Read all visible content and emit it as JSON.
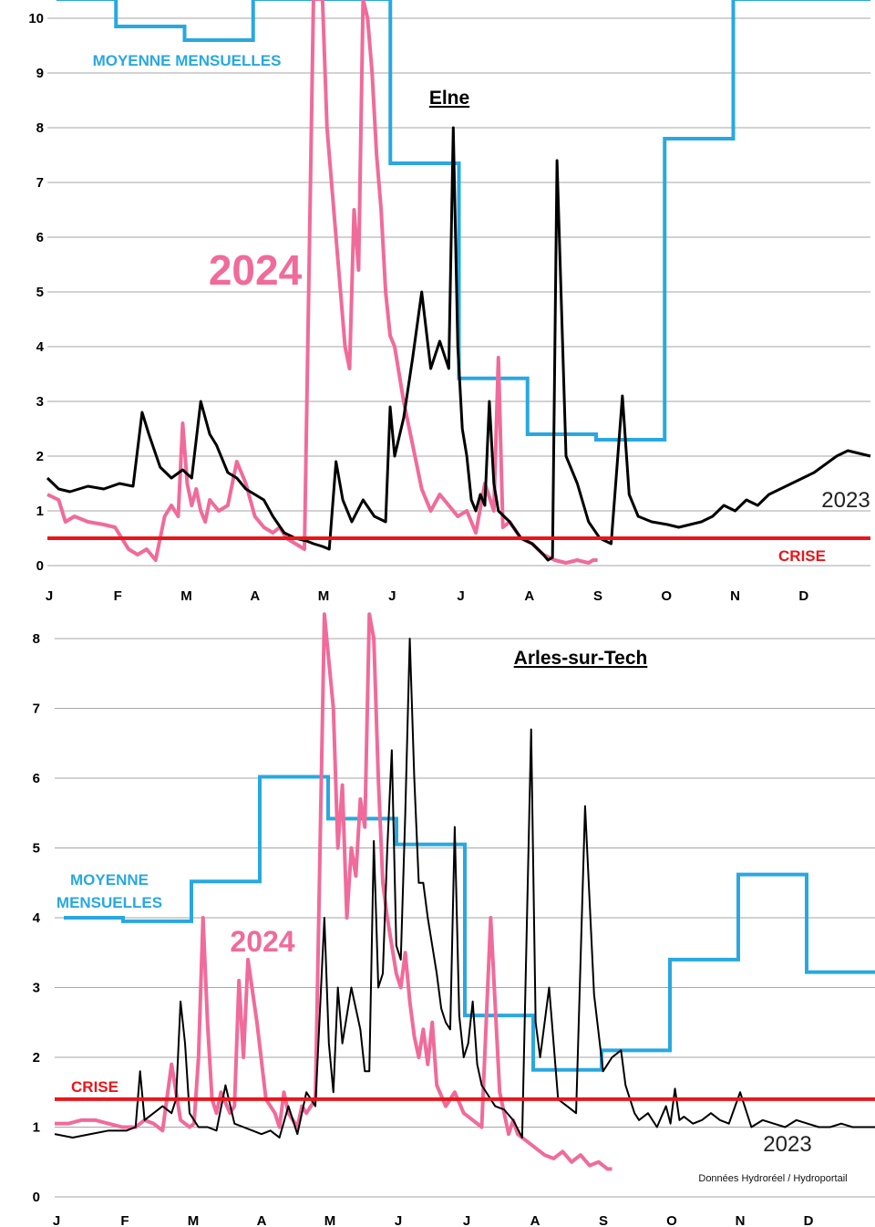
{
  "colors": {
    "mean": "#29a8e0",
    "y2024": "#f06b9a",
    "y2023": "#000000",
    "crise": "#e8161b",
    "grid": "#a6a6a6"
  },
  "chart_data": [
    {
      "type": "line",
      "title": "Elne",
      "months": [
        "J",
        "F",
        "M",
        "A",
        "M",
        "J",
        "J",
        "A",
        "S",
        "O",
        "N",
        "D"
      ],
      "ylim": [
        0,
        10
      ],
      "yticks": [
        0,
        1,
        2,
        3,
        4,
        5,
        6,
        7,
        8,
        9,
        10
      ],
      "grid": true,
      "labels": {
        "mean": "MOYENNE MENSUELLES",
        "y2024": "2024",
        "y2023": "2023",
        "crise": "CRISE"
      },
      "crise_level": 0.5,
      "series": [
        {
          "name": "MOYENNE MENSUELLES",
          "style": "step",
          "monthly_values": [
            12.0,
            9.85,
            9.6,
            14.0,
            25.0,
            7.35,
            3.42,
            2.4,
            2.3,
            7.8,
            14.0,
            14.0
          ]
        },
        {
          "name": "2023",
          "x": [
            0,
            5,
            10,
            18,
            25,
            32,
            38,
            42,
            45,
            50,
            55,
            60,
            64,
            68,
            72,
            75,
            80,
            84,
            88,
            92,
            96,
            100,
            105,
            110,
            115,
            118,
            122,
            125,
            128,
            131,
            135,
            140,
            145,
            150,
            152,
            154,
            158,
            162,
            166,
            170,
            174,
            178,
            180,
            182,
            184,
            186,
            188,
            190,
            192,
            194,
            196,
            198,
            200,
            205,
            210,
            215,
            220,
            222,
            224,
            226,
            230,
            235,
            240,
            245,
            250,
            255,
            258,
            262,
            268,
            275,
            280,
            285,
            290,
            295,
            300,
            305,
            310,
            315,
            320,
            330,
            340,
            350,
            355,
            360,
            365
          ],
          "y": [
            1.6,
            1.4,
            1.35,
            1.45,
            1.4,
            1.5,
            1.45,
            2.8,
            2.4,
            1.8,
            1.6,
            1.75,
            1.6,
            3.0,
            2.4,
            2.2,
            1.7,
            1.6,
            1.4,
            1.3,
            1.2,
            0.9,
            0.6,
            0.5,
            0.45,
            0.4,
            0.35,
            0.3,
            1.9,
            1.2,
            0.8,
            1.2,
            0.9,
            0.8,
            2.9,
            2.0,
            2.7,
            3.8,
            5.0,
            3.6,
            4.1,
            3.6,
            8.0,
            4.0,
            2.5,
            2.0,
            1.2,
            1.0,
            1.3,
            1.1,
            3.0,
            1.5,
            1.0,
            0.8,
            0.5,
            0.4,
            0.2,
            0.1,
            0.15,
            7.4,
            2.0,
            1.5,
            0.8,
            0.5,
            0.4,
            3.1,
            1.3,
            0.9,
            0.8,
            0.75,
            0.7,
            0.75,
            0.8,
            0.9,
            1.1,
            1.0,
            1.2,
            1.1,
            1.3,
            1.5,
            1.7,
            2.0,
            2.1,
            2.05,
            2.0
          ]
        },
        {
          "name": "2024",
          "x": [
            0,
            5,
            8,
            12,
            18,
            25,
            30,
            36,
            40,
            44,
            48,
            52,
            55,
            58,
            60,
            62,
            64,
            66,
            68,
            70,
            72,
            76,
            80,
            84,
            88,
            92,
            96,
            100,
            103,
            106,
            110,
            114,
            118,
            122,
            124,
            126,
            128,
            130,
            132,
            134,
            136,
            138,
            140,
            142,
            144,
            146,
            148,
            150,
            152,
            154,
            156,
            158,
            160,
            163,
            166,
            170,
            174,
            178,
            182,
            186,
            190,
            194,
            198,
            200,
            202,
            205,
            210,
            215,
            220,
            225,
            230,
            235,
            240,
            242,
            244
          ],
          "y": [
            1.3,
            1.2,
            0.8,
            0.9,
            0.8,
            0.75,
            0.7,
            0.3,
            0.2,
            0.3,
            0.1,
            0.9,
            1.1,
            0.9,
            2.6,
            1.5,
            1.1,
            1.4,
            1.0,
            0.8,
            1.2,
            1.0,
            1.1,
            1.9,
            1.5,
            0.9,
            0.7,
            0.6,
            0.7,
            0.5,
            0.4,
            0.3,
            14.0,
            11.0,
            8.0,
            7.0,
            6.0,
            5.0,
            4.0,
            3.6,
            6.5,
            5.4,
            13.0,
            10.0,
            9.0,
            7.5,
            6.5,
            5.0,
            4.2,
            4.0,
            3.5,
            3.0,
            2.6,
            2.0,
            1.4,
            1.0,
            1.3,
            1.1,
            0.9,
            1.0,
            0.6,
            1.5,
            1.0,
            3.8,
            0.7,
            0.8,
            0.5,
            0.4,
            0.2,
            0.1,
            0.05,
            0.1,
            0.05,
            0.1,
            0.1
          ]
        }
      ]
    },
    {
      "type": "line",
      "title": "Arles-sur-Tech",
      "months": [
        "J",
        "F",
        "M",
        "A",
        "M",
        "J",
        "J",
        "A",
        "S",
        "O",
        "N",
        "D"
      ],
      "ylim": [
        0,
        8
      ],
      "yticks": [
        0,
        1,
        2,
        3,
        4,
        5,
        6,
        7,
        8
      ],
      "grid": true,
      "labels": {
        "mean": [
          "MOYENNE",
          "MENSUELLES"
        ],
        "y2024": "2024",
        "y2023": "2023",
        "crise": "CRISE",
        "source": "Données Hydroréel / Hydroportail"
      },
      "crise_level": 1.4,
      "series": [
        {
          "name": "MOYENNE MENSUELLES",
          "style": "step",
          "monthly_values": [
            4.0,
            3.95,
            4.52,
            6.02,
            5.42,
            5.05,
            2.6,
            1.82,
            2.1,
            3.4,
            4.62,
            3.22
          ]
        },
        {
          "name": "2023",
          "x": [
            0,
            8,
            16,
            24,
            32,
            36,
            38,
            40,
            44,
            48,
            52,
            54,
            56,
            58,
            60,
            64,
            68,
            72,
            76,
            80,
            84,
            88,
            92,
            96,
            100,
            104,
            108,
            112,
            116,
            120,
            122,
            124,
            126,
            128,
            132,
            136,
            138,
            140,
            142,
            144,
            146,
            148,
            150,
            152,
            154,
            156,
            158,
            160,
            162,
            164,
            166,
            168,
            170,
            172,
            174,
            176,
            178,
            180,
            182,
            184,
            186,
            188,
            190,
            192,
            196,
            200,
            204,
            208,
            212,
            214,
            216,
            220,
            224,
            228,
            232,
            236,
            240,
            244,
            248,
            252,
            254,
            256,
            258,
            260,
            264,
            268,
            270,
            272,
            274,
            276,
            278,
            280,
            284,
            288,
            292,
            296,
            300,
            305,
            310,
            315,
            320,
            325,
            330,
            335,
            340,
            345,
            350,
            355,
            360,
            365
          ],
          "y": [
            0.9,
            0.85,
            0.9,
            0.95,
            0.95,
            1.0,
            1.8,
            1.1,
            1.2,
            1.3,
            1.2,
            1.4,
            2.8,
            2.2,
            1.2,
            1.0,
            1.0,
            0.95,
            1.6,
            1.05,
            1.0,
            0.95,
            0.9,
            0.95,
            0.85,
            1.3,
            0.9,
            1.5,
            1.3,
            4.0,
            2.2,
            1.5,
            3.0,
            2.2,
            3.0,
            2.4,
            1.8,
            1.8,
            5.1,
            3.0,
            3.2,
            5.0,
            6.4,
            3.6,
            3.4,
            5.5,
            8.0,
            6.0,
            4.5,
            4.5,
            4.0,
            3.6,
            3.2,
            2.7,
            2.5,
            2.4,
            5.3,
            2.6,
            2.0,
            2.2,
            2.8,
            1.9,
            1.6,
            1.5,
            1.3,
            1.25,
            1.1,
            0.85,
            6.7,
            2.5,
            2.0,
            3.0,
            1.4,
            1.3,
            1.2,
            5.6,
            2.9,
            1.8,
            2.0,
            2.1,
            1.6,
            1.4,
            1.2,
            1.1,
            1.2,
            1.0,
            1.15,
            1.3,
            1.05,
            1.55,
            1.1,
            1.15,
            1.05,
            1.1,
            1.2,
            1.1,
            1.05,
            1.5,
            1.0,
            1.1,
            1.05,
            1.0,
            1.1,
            1.05,
            1.0,
            1.0,
            1.05,
            1.0,
            1.0,
            1.0
          ]
        },
        {
          "name": "2024",
          "x": [
            0,
            6,
            12,
            18,
            24,
            30,
            36,
            40,
            44,
            48,
            52,
            56,
            60,
            62,
            64,
            66,
            68,
            70,
            72,
            74,
            78,
            80,
            82,
            84,
            86,
            90,
            94,
            98,
            100,
            102,
            104,
            106,
            108,
            110,
            112,
            116,
            120,
            124,
            126,
            128,
            130,
            132,
            134,
            136,
            138,
            140,
            142,
            144,
            146,
            148,
            150,
            152,
            154,
            156,
            158,
            160,
            162,
            164,
            166,
            168,
            170,
            174,
            178,
            182,
            186,
            190,
            194,
            198,
            202,
            204,
            206,
            210,
            214,
            218,
            222,
            226,
            230,
            234,
            238,
            242,
            244,
            246,
            248
          ],
          "y": [
            1.05,
            1.05,
            1.1,
            1.1,
            1.05,
            1.0,
            1.0,
            1.1,
            1.05,
            0.95,
            1.9,
            1.1,
            1.0,
            1.05,
            2.0,
            4.0,
            2.5,
            1.4,
            1.2,
            1.5,
            1.2,
            1.3,
            3.1,
            2.0,
            3.4,
            2.5,
            1.4,
            1.2,
            1.0,
            1.5,
            1.2,
            1.1,
            1.0,
            1.3,
            1.2,
            1.4,
            10.0,
            7.0,
            5.0,
            5.9,
            4.0,
            5.0,
            4.6,
            5.7,
            5.3,
            10.0,
            8.0,
            6.0,
            4.5,
            4.0,
            3.6,
            3.2,
            3.0,
            3.5,
            2.8,
            2.3,
            2.0,
            2.4,
            1.9,
            2.5,
            1.6,
            1.3,
            1.5,
            1.2,
            1.1,
            1.0,
            4.0,
            1.5,
            0.9,
            1.1,
            0.9,
            0.8,
            0.7,
            0.6,
            0.55,
            0.65,
            0.5,
            0.6,
            0.45,
            0.5,
            0.45,
            0.4,
            0.4
          ]
        }
      ]
    }
  ]
}
